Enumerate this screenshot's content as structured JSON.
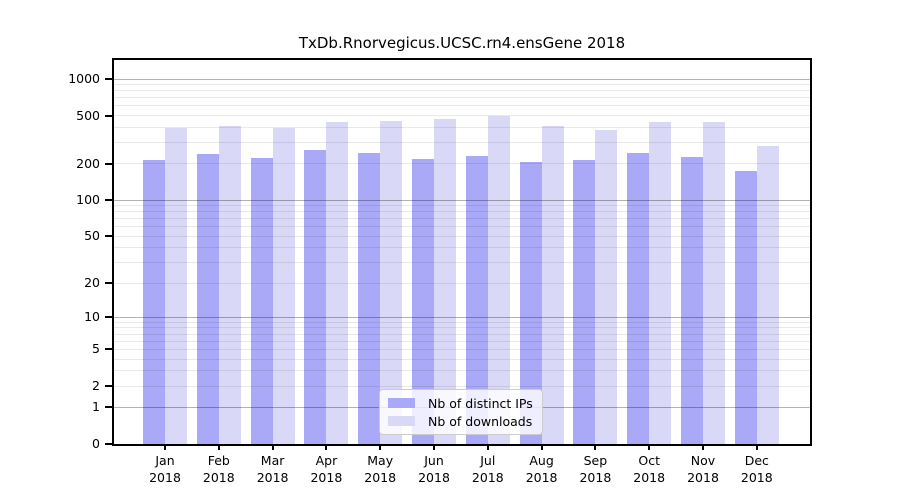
{
  "chart_data": {
    "type": "bar",
    "title": "TxDb.Rnorvegicus.UCSC.rn4.ensGene 2018",
    "categories": [
      "Jan",
      "Feb",
      "Mar",
      "Apr",
      "May",
      "Jun",
      "Jul",
      "Aug",
      "Sep",
      "Oct",
      "Nov",
      "Dec"
    ],
    "x_tick_second_line": "2018",
    "series": [
      {
        "name": "Nb of distinct IPs",
        "color": "#a9a9f7",
        "values": [
          214,
          239,
          223,
          258,
          248,
          220,
          231,
          208,
          217,
          248,
          230,
          173
        ]
      },
      {
        "name": "Nb of downloads",
        "color": "#d9d9f7",
        "values": [
          393,
          411,
          398,
          446,
          452,
          469,
          492,
          409,
          380,
          446,
          446,
          280
        ]
      }
    ],
    "xlabel": "",
    "ylabel": "",
    "yscale": "log10(1+x)",
    "ylim": [
      0,
      1380
    ],
    "y_ticks": [
      1000,
      500,
      200,
      100,
      50,
      20,
      10,
      5,
      2,
      1,
      0
    ],
    "grid": true,
    "legend_position": "lower center"
  }
}
